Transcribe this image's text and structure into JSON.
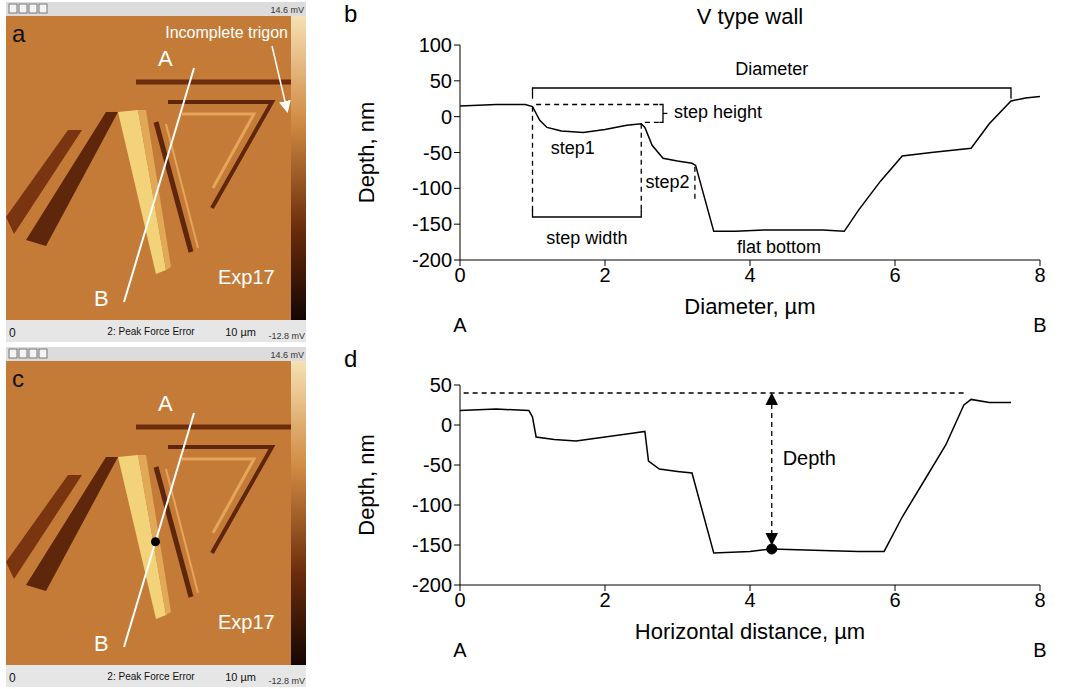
{
  "images": [
    {
      "panel": "a",
      "pointer": "Incomplete trigon",
      "line_ends": [
        "A",
        "B"
      ],
      "experiment": "Exp17",
      "footer": [
        "0",
        "2: Peak Force Error",
        "10 µm"
      ],
      "colorbar": [
        "14.6 mV",
        "-12.8 mV"
      ]
    },
    {
      "panel": "c",
      "line_ends": [
        "A",
        "B"
      ],
      "experiment": "Exp17",
      "footer": [
        "0",
        "2: Peak Force Error",
        "10 µm"
      ],
      "colorbar": [
        "14.6 mV",
        "-12.8 mV"
      ]
    }
  ],
  "chart_data": [
    {
      "type": "line",
      "panel": "b",
      "title": "V type wall",
      "x_label": "Diameter, µm",
      "y_label": "Depth, nm",
      "end_labels": [
        "A",
        "B"
      ],
      "x": [
        0,
        0.5,
        0.9,
        1.0,
        1.1,
        1.2,
        1.4,
        1.7,
        2.0,
        2.3,
        2.5,
        2.55,
        2.65,
        2.8,
        3.0,
        3.2,
        3.25,
        3.5,
        3.8,
        4.2,
        4.6,
        5.0,
        5.3,
        5.5,
        5.8,
        6.1,
        6.5,
        7.05,
        7.3,
        7.6,
        7.8,
        8.0
      ],
      "values": [
        15,
        17,
        17,
        14,
        -5,
        -15,
        -20,
        -22,
        -18,
        -12,
        -10,
        -15,
        -40,
        -58,
        -62,
        -65,
        -68,
        -160,
        -160,
        -158,
        -158,
        -158,
        -160,
        -130,
        -90,
        -55,
        -50,
        -44,
        -10,
        22,
        26,
        28
      ],
      "color": "#000000",
      "xlim": [
        0,
        8
      ],
      "xticks": [
        0,
        2,
        4,
        6,
        8
      ],
      "ylim": [
        -200,
        100
      ],
      "yticks": [
        -200,
        -150,
        -100,
        -50,
        0,
        50,
        100
      ],
      "annotations": [
        "Diameter",
        "step height",
        "step1",
        "step2",
        "step width",
        "flat bottom"
      ]
    },
    {
      "type": "line",
      "panel": "d",
      "x_label": "Horizontal distance, µm",
      "y_label": "Depth, nm",
      "end_labels": [
        "A",
        "B"
      ],
      "x": [
        0,
        0.5,
        0.95,
        1.0,
        1.05,
        1.3,
        1.6,
        2.0,
        2.4,
        2.55,
        2.6,
        2.75,
        3.0,
        3.2,
        3.5,
        4.0,
        4.3,
        5.0,
        5.5,
        5.85,
        6.1,
        6.4,
        6.7,
        6.95,
        7.05,
        7.3,
        7.6
      ],
      "values": [
        18,
        20,
        18,
        10,
        -15,
        -18,
        -20,
        -15,
        -10,
        -8,
        -45,
        -55,
        -58,
        -60,
        -160,
        -158,
        -155,
        -157,
        -158,
        -158,
        -115,
        -70,
        -25,
        25,
        32,
        28,
        28
      ],
      "color": "#000000",
      "xlim": [
        0,
        8
      ],
      "xticks": [
        0,
        2,
        4,
        6,
        8
      ],
      "ylim": [
        -200,
        50
      ],
      "yticks": [
        -200,
        -150,
        -100,
        -50,
        0,
        50
      ],
      "marked_point": {
        "x": 4.3,
        "y": -155
      },
      "annotations": [
        "Depth"
      ]
    }
  ]
}
